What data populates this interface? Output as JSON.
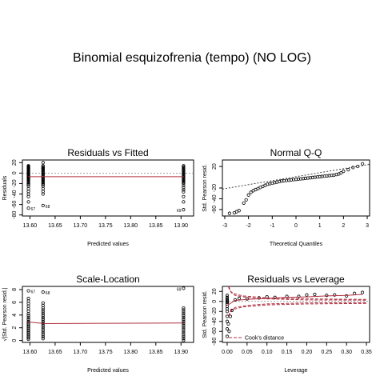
{
  "page_title": "Binomial esquizofrenia (tempo) (NO LOG)",
  "colors": {
    "fit_line": "#b03040",
    "cook_line": "#b03040",
    "ref_line": "#888888",
    "points": "#000000"
  },
  "chart_data": [
    {
      "id": "resid_fitted",
      "type": "scatter",
      "title": "Residuals vs Fitted",
      "xlabel": "Predicted values",
      "ylabel": "Residuals",
      "xlim": [
        13.585,
        13.925
      ],
      "ylim": [
        -82,
        25
      ],
      "xticks": [
        13.6,
        13.65,
        13.7,
        13.75,
        13.8,
        13.85,
        13.9
      ],
      "xtick_labels": [
        "13.60",
        "13.65",
        "13.70",
        "13.75",
        "13.80",
        "13.85",
        "13.90"
      ],
      "yticks": [
        -80,
        -60,
        -40,
        -20,
        0,
        20
      ],
      "ytick_labels": [
        "-80",
        "-60",
        "-40",
        "-20",
        "0",
        "20"
      ],
      "hline": 0,
      "smooth": [
        [
          13.597,
          -7
        ],
        [
          13.63,
          -7
        ],
        [
          13.905,
          -7
        ]
      ],
      "x": [
        13.597,
        13.626,
        13.905
      ],
      "y_values": [
        [
          14,
          13,
          12,
          11,
          10,
          9,
          8,
          7,
          6,
          5,
          4,
          3,
          2,
          1,
          0,
          -1,
          -2,
          -3,
          -4,
          -5,
          -6,
          -7,
          -8,
          -9,
          -10,
          -11,
          -12,
          -14,
          -16,
          -18,
          -20,
          -22,
          -25,
          -30,
          -35,
          -40,
          -45,
          -55,
          -67
        ],
        [
          20,
          14,
          12,
          10,
          9,
          8,
          6,
          4,
          2,
          0,
          -2,
          -4,
          -6,
          -8,
          -10,
          -12,
          -14,
          -16,
          -18,
          -20,
          -22,
          -25,
          -30,
          -35,
          -40,
          -62
        ],
        [
          14,
          12,
          10,
          8,
          6,
          4,
          2,
          0,
          -2,
          -4,
          -6,
          -8,
          -10,
          -12,
          -14,
          -16,
          -18,
          -20,
          -24,
          -28,
          -32,
          -36,
          -45,
          -55,
          -70
        ]
      ],
      "labeled_points": [
        {
          "label": "67",
          "x": 13.597,
          "y": -67
        },
        {
          "label": "68",
          "x": 13.626,
          "y": -62
        },
        {
          "label": "69",
          "x": 13.905,
          "y": -70
        }
      ]
    },
    {
      "id": "normal_qq",
      "type": "scatter",
      "title": "Normal Q-Q",
      "xlabel": "Theoretical Quantiles",
      "ylabel": "Std. Pearson resid.",
      "xlim": [
        -3.1,
        3.1
      ],
      "ylim": [
        -72,
        32
      ],
      "xticks": [
        -3,
        -2,
        -1,
        0,
        1,
        2,
        3
      ],
      "xtick_labels": [
        "-3",
        "-2",
        "-1",
        "0",
        "1",
        "2",
        "3"
      ],
      "yticks": [
        -60,
        -40,
        -20,
        20
      ],
      "ytick_labels": [
        "-60",
        "-40",
        "-20",
        "20"
      ],
      "ref_line": [
        [
          -3.1,
          -22
        ],
        [
          3.1,
          24
        ]
      ],
      "quantiles": [
        [
          -2.8,
          -67
        ],
        [
          -2.6,
          -66
        ],
        [
          -2.5,
          -64
        ],
        [
          -2.4,
          -62
        ],
        [
          -2.2,
          -48
        ],
        [
          -2.1,
          -42
        ],
        [
          -2.0,
          -33
        ],
        [
          -1.9,
          -28
        ],
        [
          -1.8,
          -25
        ],
        [
          -1.7,
          -23
        ],
        [
          -1.6,
          -21
        ],
        [
          -1.5,
          -19
        ],
        [
          -1.4,
          -17
        ],
        [
          -1.3,
          -15
        ],
        [
          -1.2,
          -13
        ],
        [
          -1.1,
          -12
        ],
        [
          -1.0,
          -11
        ],
        [
          -0.9,
          -10
        ],
        [
          -0.8,
          -9
        ],
        [
          -0.7,
          -8
        ],
        [
          -0.6,
          -7
        ],
        [
          -0.5,
          -6.5
        ],
        [
          -0.4,
          -6
        ],
        [
          -0.3,
          -5.5
        ],
        [
          -0.2,
          -5
        ],
        [
          -0.1,
          -4.5
        ],
        [
          0.0,
          -4
        ],
        [
          0.1,
          -3.5
        ],
        [
          0.2,
          -3
        ],
        [
          0.3,
          -2.5
        ],
        [
          0.4,
          -2
        ],
        [
          0.5,
          -1.5
        ],
        [
          0.6,
          -1
        ],
        [
          0.7,
          -0.5
        ],
        [
          0.8,
          0
        ],
        [
          0.9,
          0.5
        ],
        [
          1.0,
          1
        ],
        [
          1.1,
          1.5
        ],
        [
          1.2,
          2
        ],
        [
          1.3,
          2.5
        ],
        [
          1.4,
          3
        ],
        [
          1.5,
          3.5
        ],
        [
          1.6,
          4
        ],
        [
          1.7,
          5
        ],
        [
          1.8,
          6
        ],
        [
          1.9,
          8
        ],
        [
          2.0,
          11
        ],
        [
          2.2,
          14
        ],
        [
          2.4,
          18
        ],
        [
          2.6,
          20
        ],
        [
          2.8,
          25
        ]
      ]
    },
    {
      "id": "scale_location",
      "type": "scatter",
      "title": "Scale-Location",
      "xlabel": "Predicted values",
      "ylabel": "√|Std. Pearson resid.|",
      "xlim": [
        13.585,
        13.925
      ],
      "ylim": [
        -0.3,
        8.5
      ],
      "xticks": [
        13.6,
        13.65,
        13.7,
        13.75,
        13.8,
        13.85,
        13.9
      ],
      "xtick_labels": [
        "13.60",
        "13.65",
        "13.70",
        "13.75",
        "13.80",
        "13.85",
        "13.90"
      ],
      "yticks": [
        0,
        2,
        4,
        6,
        8
      ],
      "ytick_labels": [
        "0",
        "2",
        "4",
        "6",
        "8"
      ],
      "smooth": [
        [
          13.597,
          2.9
        ],
        [
          13.63,
          2.65
        ],
        [
          13.76,
          2.7
        ],
        [
          13.905,
          2.75
        ]
      ],
      "x": [
        13.597,
        13.626,
        13.905
      ],
      "y_values": [
        [
          7.8,
          6.6,
          6.2,
          5.8,
          5.4,
          5.0,
          4.6,
          4.2,
          3.9,
          3.6,
          3.3,
          3.0,
          2.8,
          2.6,
          2.4,
          2.2,
          2.0,
          1.8,
          1.6,
          1.4,
          1.2,
          1.0,
          0.8,
          0.6,
          0.4,
          0.2
        ],
        [
          7.6,
          5.9,
          5.5,
          5.1,
          4.8,
          4.5,
          4.2,
          3.9,
          3.6,
          3.3,
          3.0,
          2.7,
          2.4,
          2.1,
          1.8,
          1.5,
          1.2,
          0.9,
          0.6,
          0.3
        ],
        [
          8.2,
          5.1,
          4.8,
          4.5,
          4.2,
          3.9,
          3.6,
          3.3,
          3.0,
          2.7,
          2.4,
          2.1,
          1.8,
          1.5,
          1.2,
          0.9,
          0.6,
          0.3,
          0.0
        ]
      ],
      "labeled_points": [
        {
          "label": "67",
          "x": 13.597,
          "y": 7.8
        },
        {
          "label": "68",
          "x": 13.626,
          "y": 7.6
        },
        {
          "label": "69",
          "x": 13.905,
          "y": 8.2
        }
      ]
    },
    {
      "id": "resid_leverage",
      "type": "scatter",
      "title": "Residuals vs Leverage",
      "xlabel": "Leverage",
      "ylabel": "Std. Pearson resid.",
      "xlim": [
        -0.012,
        0.358
      ],
      "ylim": [
        -82,
        30
      ],
      "xticks": [
        0.0,
        0.05,
        0.1,
        0.15,
        0.2,
        0.25,
        0.3,
        0.35
      ],
      "xtick_labels": [
        "0.00",
        "0.05",
        "0.10",
        "0.15",
        "0.20",
        "0.25",
        "0.30",
        "0.35"
      ],
      "yticks": [
        -80,
        -60,
        -40,
        -20,
        0,
        20
      ],
      "ytick_labels": [
        "-80",
        "-60",
        "-40",
        "-20",
        "0",
        "20"
      ],
      "hline": 0,
      "points": [
        [
          0.0,
          12
        ],
        [
          0.0,
          8
        ],
        [
          0.0,
          5
        ],
        [
          0.0,
          2
        ],
        [
          0.0,
          0
        ],
        [
          0.0,
          -2
        ],
        [
          0.0,
          -5
        ],
        [
          0.0,
          -10
        ],
        [
          0.0,
          -15
        ],
        [
          0.0,
          -20
        ],
        [
          0.0,
          -30
        ],
        [
          0.0,
          -40
        ],
        [
          0.0,
          -55
        ],
        [
          0.0,
          -70
        ],
        [
          0.003,
          -45
        ],
        [
          0.005,
          -60
        ],
        [
          0.008,
          -30
        ],
        [
          0.012,
          -18
        ],
        [
          0.02,
          3
        ],
        [
          0.03,
          6
        ],
        [
          0.05,
          5
        ],
        [
          0.08,
          7
        ],
        [
          0.1,
          9
        ],
        [
          0.12,
          8
        ],
        [
          0.15,
          10
        ],
        [
          0.18,
          10
        ],
        [
          0.2,
          13
        ],
        [
          0.22,
          14
        ],
        [
          0.25,
          12
        ],
        [
          0.27,
          13
        ],
        [
          0.3,
          11
        ],
        [
          0.32,
          16
        ],
        [
          0.34,
          18
        ]
      ],
      "smooth": [
        [
          0.0,
          -8
        ],
        [
          0.02,
          2
        ],
        [
          0.05,
          4
        ],
        [
          0.1,
          6
        ],
        [
          0.15,
          8
        ],
        [
          0.2,
          9
        ],
        [
          0.25,
          11
        ],
        [
          0.3,
          12
        ],
        [
          0.34,
          14
        ]
      ],
      "cook_lines": [
        [
          [
            0.004,
            30
          ],
          [
            0.01,
            18
          ],
          [
            0.02,
            12
          ],
          [
            0.05,
            8
          ],
          [
            0.1,
            5
          ],
          [
            0.2,
            3
          ],
          [
            0.35,
            2.5
          ]
        ],
        [
          [
            0.004,
            -30
          ],
          [
            0.01,
            -18
          ],
          [
            0.02,
            -12
          ],
          [
            0.05,
            -8
          ],
          [
            0.1,
            -5
          ],
          [
            0.2,
            -3
          ],
          [
            0.35,
            -2.5
          ]
        ],
        [
          [
            0.003,
            30
          ],
          [
            0.006,
            22
          ],
          [
            0.015,
            16
          ],
          [
            0.04,
            11
          ],
          [
            0.1,
            7
          ],
          [
            0.2,
            5
          ],
          [
            0.35,
            4
          ]
        ],
        [
          [
            0.003,
            -30
          ],
          [
            0.006,
            -22
          ],
          [
            0.015,
            -16
          ],
          [
            0.04,
            -11
          ],
          [
            0.1,
            -7
          ],
          [
            0.2,
            -5
          ],
          [
            0.35,
            -4
          ]
        ]
      ],
      "legend": "Cook's distance",
      "legend_position": "bottom-left"
    }
  ]
}
